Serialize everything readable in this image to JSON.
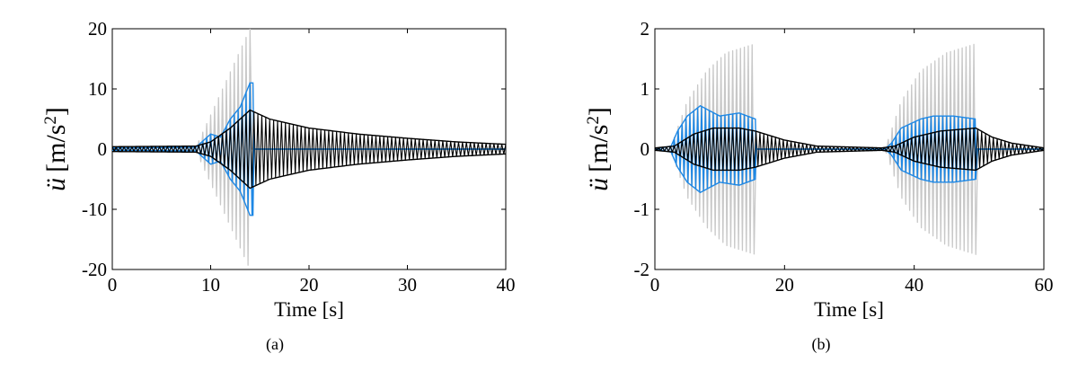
{
  "chart_data": [
    {
      "type": "line",
      "caption": "(a)",
      "xlabel": "Time [s]",
      "ylabel_symbol": "ü",
      "ylabel_unit": "[m/s",
      "ylabel_sup": "2",
      "ylabel_close": "]",
      "xlim": [
        0,
        40
      ],
      "ylim": [
        -20,
        20
      ],
      "xticks": [
        "0",
        "10",
        "20",
        "30",
        "40"
      ],
      "yticks": [
        "20",
        "10",
        "0",
        "-10",
        "-20"
      ],
      "grid": false,
      "series": [
        {
          "color": "#c8c8c8",
          "period": 0.4,
          "envelope": [
            [
              0,
              0.3
            ],
            [
              8.5,
              0.3
            ],
            [
              14.0,
              20
            ],
            [
              14.0,
              0
            ]
          ]
        },
        {
          "color": "#1e88e5",
          "period": 0.4,
          "envelope": [
            [
              0,
              0.2
            ],
            [
              8.5,
              0.3
            ],
            [
              10.0,
              2.5
            ],
            [
              11.0,
              2.0
            ],
            [
              12.0,
              5.0
            ],
            [
              13.0,
              7.0
            ],
            [
              14.0,
              11.0
            ],
            [
              14.3,
              11.0
            ],
            [
              14.3,
              0
            ]
          ]
        },
        {
          "color": "#000000",
          "period": 0.4,
          "envelope": [
            [
              0,
              0.4
            ],
            [
              8.5,
              0.5
            ],
            [
              10.0,
              1.2
            ],
            [
              12.0,
              3.5
            ],
            [
              14.0,
              6.5
            ],
            [
              16.0,
              5.0
            ],
            [
              20.0,
              3.5
            ],
            [
              25.0,
              2.5
            ],
            [
              30.0,
              1.8
            ],
            [
              35.0,
              1.2
            ],
            [
              40.0,
              0.8
            ]
          ]
        }
      ]
    },
    {
      "type": "line",
      "caption": "(b)",
      "xlabel": "Time [s]",
      "ylabel_symbol": "ü",
      "ylabel_unit": "[m/s",
      "ylabel_sup": "2",
      "ylabel_close": "]",
      "xlim": [
        0,
        60
      ],
      "ylim": [
        -2,
        2
      ],
      "xticks": [
        "0",
        "20",
        "40",
        "60"
      ],
      "yticks": [
        "2",
        "1",
        "0",
        "-1",
        "-2"
      ],
      "grid": false,
      "series": [
        {
          "color": "#c8c8c8",
          "period": 0.6,
          "envelope": [
            [
              0,
              0
            ],
            [
              2.5,
              0.05
            ],
            [
              5.0,
              0.8
            ],
            [
              8.0,
              1.3
            ],
            [
              11.0,
              1.6
            ],
            [
              15.5,
              1.75
            ],
            [
              15.5,
              0
            ],
            [
              35.5,
              0
            ],
            [
              38.0,
              0.8
            ],
            [
              41.0,
              1.3
            ],
            [
              45.0,
              1.6
            ],
            [
              49.5,
              1.75
            ],
            [
              49.5,
              0
            ],
            [
              60.0,
              0
            ]
          ]
        },
        {
          "color": "#1e88e5",
          "period": 0.6,
          "envelope": [
            [
              0,
              0
            ],
            [
              2.5,
              0.05
            ],
            [
              3.5,
              0.3
            ],
            [
              5.0,
              0.55
            ],
            [
              7.0,
              0.72
            ],
            [
              10.0,
              0.55
            ],
            [
              13.0,
              0.6
            ],
            [
              15.5,
              0.5
            ],
            [
              15.5,
              0
            ],
            [
              35.5,
              0
            ],
            [
              36.5,
              0.1
            ],
            [
              38.0,
              0.35
            ],
            [
              41.0,
              0.5
            ],
            [
              43.0,
              0.55
            ],
            [
              46.0,
              0.55
            ],
            [
              49.5,
              0.5
            ],
            [
              49.5,
              0
            ],
            [
              60.0,
              0
            ]
          ]
        },
        {
          "color": "#000000",
          "period": 0.6,
          "envelope": [
            [
              0,
              0.02
            ],
            [
              3.0,
              0.05
            ],
            [
              6.0,
              0.25
            ],
            [
              9.0,
              0.35
            ],
            [
              13.0,
              0.35
            ],
            [
              15.5,
              0.3
            ],
            [
              20.0,
              0.15
            ],
            [
              25.0,
              0.05
            ],
            [
              35.0,
              0.02
            ],
            [
              37.0,
              0.05
            ],
            [
              40.0,
              0.2
            ],
            [
              44.0,
              0.3
            ],
            [
              49.5,
              0.35
            ],
            [
              52.0,
              0.2
            ],
            [
              55.0,
              0.1
            ],
            [
              60.0,
              0.02
            ]
          ]
        }
      ]
    }
  ]
}
